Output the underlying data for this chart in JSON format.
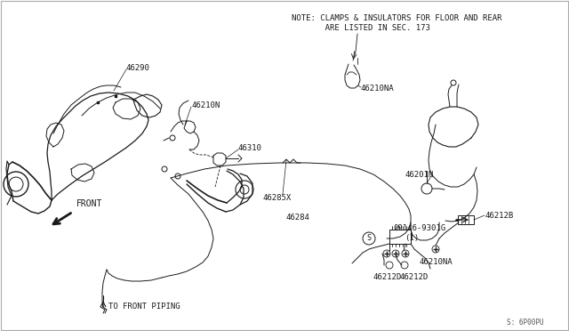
{
  "bg_color": "#ffffff",
  "line_color": "#1a1a1a",
  "text_color": "#1a1a1a",
  "border_color": "#cccccc",
  "diagram_id": "S: 6P00PU",
  "note_line1": "NOTE: CLAMPS & INSULATORS FOR FLOOR AND REAR",
  "note_line2": "        ARE LISTED IN SEC. 173",
  "font_size": 6.5,
  "label_font": 6.5
}
